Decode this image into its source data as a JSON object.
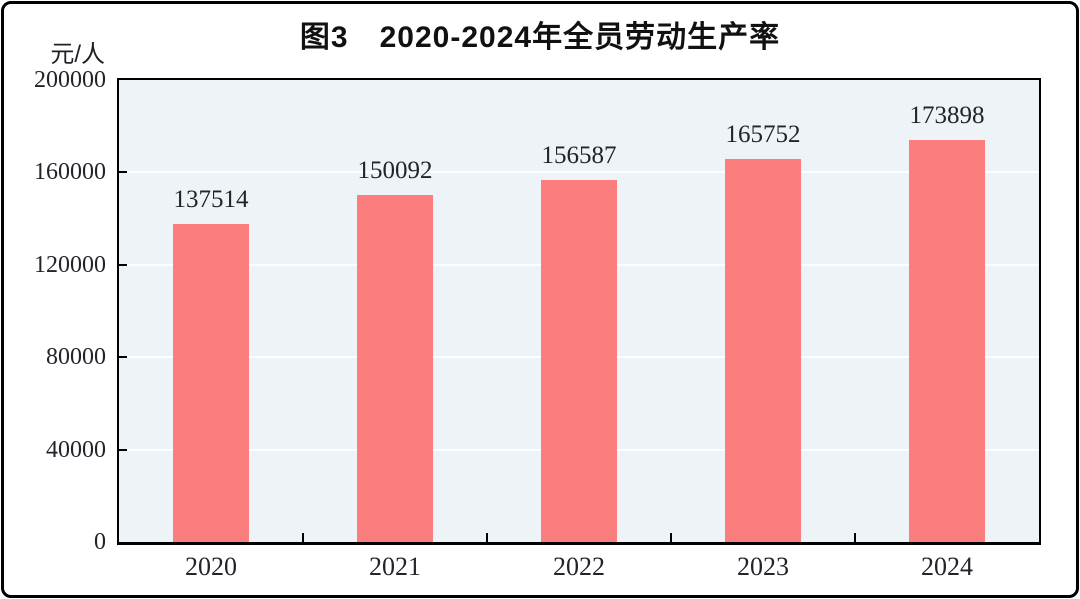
{
  "chart_data": {
    "type": "bar",
    "title": "图3　2020-2024年全员劳动生产率",
    "unit_label": "元/人",
    "categories": [
      "2020",
      "2021",
      "2022",
      "2023",
      "2024"
    ],
    "values": [
      137514,
      150092,
      156587,
      165752,
      173898
    ],
    "value_labels": [
      "137514",
      "150092",
      "156587",
      "165752",
      "173898"
    ],
    "ytick_labels": [
      "0",
      "40000",
      "80000",
      "120000",
      "160000",
      "200000"
    ],
    "yticks": [
      0,
      40000,
      80000,
      120000,
      160000,
      200000
    ],
    "ylim": [
      0,
      200000
    ],
    "xlabel": "",
    "ylabel": "元/人",
    "grid": "horizontal-white-lines",
    "legend": "none",
    "colors": {
      "bar": "#FC7D7D",
      "plot_background": "#EDF3F6",
      "gridline": "#FDFEFE",
      "axis": "#000000",
      "text": "#22242C",
      "page_background": "#FFFFFF"
    }
  }
}
